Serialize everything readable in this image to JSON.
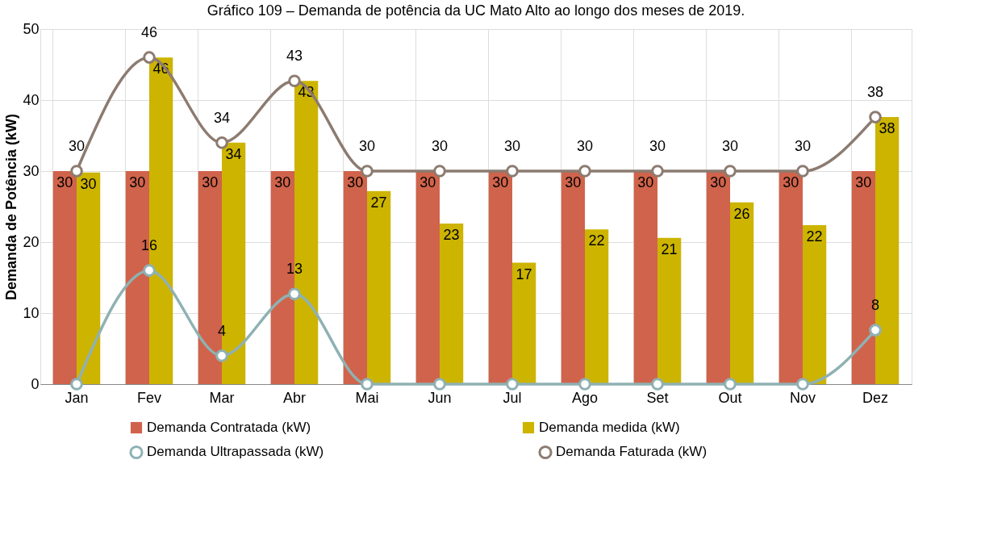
{
  "chart_data": {
    "type": "bar",
    "title": "Gráfico 109 – Demanda de potência da UC Mato Alto ao longo dos meses de 2019.",
    "ylabel": "Demanda de Potência (kW)",
    "categories": [
      "Jan",
      "Fev",
      "Mar",
      "Abr",
      "Mai",
      "Jun",
      "Jul",
      "Ago",
      "Set",
      "Out",
      "Nov",
      "Dez"
    ],
    "series": [
      {
        "name": "Demanda Contratada (kW)",
        "color": "#d0634b",
        "values": [
          30,
          30,
          30,
          30,
          30,
          30,
          30,
          30,
          30,
          30,
          30,
          30
        ],
        "value_labels": [
          "30",
          "30",
          "30",
          "30",
          "30",
          "30",
          "30",
          "30",
          "30",
          "30",
          "30",
          "30"
        ]
      },
      {
        "name": "Demanda medida (kW)",
        "color": "#ccb400",
        "values": [
          29.8,
          46,
          34,
          42.7,
          27.2,
          22.6,
          17.1,
          21.8,
          20.6,
          25.6,
          22.4,
          37.6
        ],
        "value_labels": [
          "30",
          "46",
          "34",
          "43",
          "27",
          "23",
          "17",
          "22",
          "21",
          "26",
          "22",
          "38"
        ]
      },
      {
        "name": "Demanda Ultrapassada (kW)",
        "type": "line",
        "color": "#8fb1b3",
        "values": [
          0,
          16,
          4,
          12.7,
          0,
          0,
          0,
          0,
          0,
          0,
          0,
          7.6
        ],
        "value_labels": [
          null,
          "16",
          "4",
          "13",
          null,
          null,
          null,
          null,
          null,
          null,
          null,
          "8"
        ]
      },
      {
        "name": "Demanda Faturada (kW)",
        "type": "line",
        "color": "#8c7b70",
        "values": [
          30,
          46,
          34,
          42.7,
          30,
          30,
          30,
          30,
          30,
          30,
          30,
          37.6
        ],
        "value_labels": [
          "30",
          "46",
          "34",
          "43",
          "30",
          "30",
          "30",
          "30",
          "30",
          "30",
          "30",
          "38"
        ]
      }
    ],
    "ylim": [
      0,
      50
    ],
    "yticks": [
      0,
      10,
      20,
      30,
      40,
      50
    ],
    "grid": true,
    "legend": "bottom",
    "marker": "circle"
  }
}
